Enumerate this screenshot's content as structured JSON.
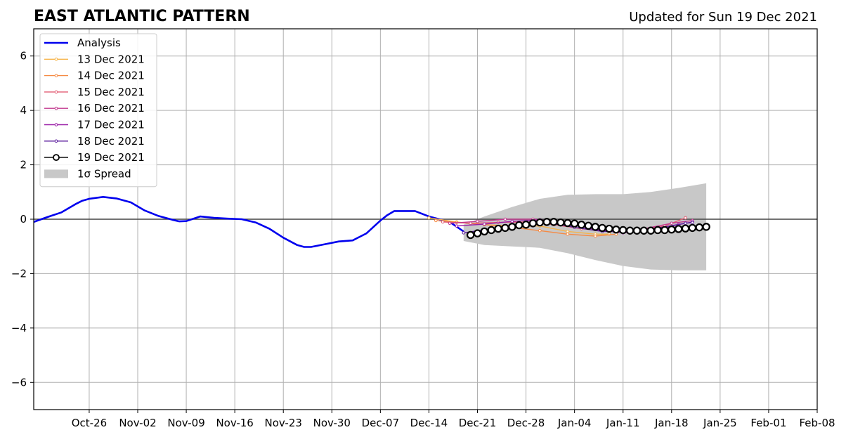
{
  "chart_data": {
    "type": "line",
    "title": "EAST ATLANTIC PATTERN",
    "subtitle": "Updated for Sun 19 Dec 2021",
    "xlabel": "",
    "ylabel": "",
    "x_range": [
      "2021-10-18",
      "2022-02-08"
    ],
    "ylim": [
      -7,
      7
    ],
    "y_ticks": [
      -6,
      -4,
      -2,
      0,
      2,
      4,
      6
    ],
    "x_ticks": [
      "Oct-26",
      "Nov-02",
      "Nov-09",
      "Nov-16",
      "Nov-23",
      "Nov-30",
      "Dec-07",
      "Dec-14",
      "Dec-21",
      "Dec-28",
      "Jan-04",
      "Jan-11",
      "Jan-18",
      "Jan-25",
      "Feb-01",
      "Feb-08"
    ],
    "grid": true,
    "legend_position": "top-left",
    "colors": {
      "analysis": "#0000ee",
      "spread": "#c8c8c8",
      "zero_line": "#444444"
    },
    "analysis": {
      "name": "Analysis",
      "x": [
        "2021-10-18",
        "2021-10-20",
        "2021-10-22",
        "2021-10-24",
        "2021-10-25",
        "2021-10-26",
        "2021-10-28",
        "2021-10-30",
        "2021-11-01",
        "2021-11-03",
        "2021-11-05",
        "2021-11-07",
        "2021-11-08",
        "2021-11-09",
        "2021-11-11",
        "2021-11-13",
        "2021-11-15",
        "2021-11-17",
        "2021-11-19",
        "2021-11-21",
        "2021-11-23",
        "2021-11-25",
        "2021-11-26",
        "2021-11-27",
        "2021-11-29",
        "2021-12-01",
        "2021-12-03",
        "2021-12-05",
        "2021-12-07",
        "2021-12-08",
        "2021-12-09",
        "2021-12-12",
        "2021-12-14",
        "2021-12-17",
        "2021-12-19"
      ],
      "y": [
        -0.1,
        0.08,
        0.25,
        0.55,
        0.68,
        0.75,
        0.82,
        0.76,
        0.62,
        0.32,
        0.12,
        -0.02,
        -0.08,
        -0.07,
        0.1,
        0.05,
        0.02,
        0.0,
        -0.12,
        -0.35,
        -0.68,
        -0.95,
        -1.02,
        -1.02,
        -0.92,
        -0.82,
        -0.78,
        -0.52,
        -0.05,
        0.15,
        0.3,
        0.3,
        0.1,
        -0.1,
        -0.45
      ]
    },
    "spread": {
      "name": "1σ Spread",
      "x": [
        "2021-12-19",
        "2021-12-22",
        "2021-12-26",
        "2021-12-30",
        "2022-01-03",
        "2022-01-07",
        "2022-01-11",
        "2022-01-15",
        "2022-01-19",
        "2022-01-23"
      ],
      "upper": [
        -0.2,
        0.1,
        0.45,
        0.75,
        0.9,
        0.92,
        0.92,
        1.0,
        1.15,
        1.32
      ],
      "lower": [
        -0.8,
        -0.95,
        -1.0,
        -1.05,
        -1.25,
        -1.5,
        -1.72,
        -1.85,
        -1.88,
        -1.88
      ]
    },
    "series": [
      {
        "name": "13 Dec 2021",
        "color": "#f6b44a",
        "marker": "dot",
        "x": [
          "2021-12-14",
          "2021-12-18",
          "2021-12-22",
          "2021-12-26",
          "2021-12-30",
          "2022-01-03",
          "2022-01-07",
          "2022-01-09"
        ],
        "y": [
          0.05,
          -0.1,
          -0.2,
          -0.25,
          -0.25,
          -0.45,
          -0.55,
          -0.55
        ]
      },
      {
        "name": "14 Dec 2021",
        "color": "#f58a44",
        "marker": "dot",
        "x": [
          "2021-12-15",
          "2021-12-18",
          "2021-12-22",
          "2021-12-26",
          "2021-12-30",
          "2022-01-03",
          "2022-01-07",
          "2022-01-10"
        ],
        "y": [
          -0.05,
          -0.12,
          -0.2,
          -0.3,
          -0.42,
          -0.55,
          -0.62,
          -0.55
        ]
      },
      {
        "name": "15 Dec 2021",
        "color": "#e25d73",
        "marker": "dot",
        "x": [
          "2021-12-16",
          "2021-12-20",
          "2021-12-24",
          "2021-12-28",
          "2022-01-01",
          "2022-01-05",
          "2022-01-09",
          "2022-01-13",
          "2022-01-17",
          "2022-01-20"
        ],
        "y": [
          -0.1,
          -0.15,
          -0.12,
          -0.1,
          -0.2,
          -0.35,
          -0.45,
          -0.4,
          -0.25,
          0.05
        ]
      },
      {
        "name": "16 Dec 2021",
        "color": "#c2378e",
        "marker": "dot",
        "x": [
          "2021-12-17",
          "2021-12-21",
          "2021-12-25",
          "2021-12-29",
          "2022-01-02",
          "2022-01-06",
          "2022-01-10",
          "2022-01-14",
          "2022-01-18",
          "2022-01-21"
        ],
        "y": [
          -0.15,
          -0.08,
          0.0,
          0.0,
          -0.1,
          -0.3,
          -0.45,
          -0.35,
          -0.15,
          -0.05
        ]
      },
      {
        "name": "17 Dec 2021",
        "color": "#9a1fa7",
        "marker": "dot",
        "x": [
          "2021-12-18",
          "2021-12-22",
          "2021-12-26",
          "2021-12-30",
          "2022-01-03",
          "2022-01-07",
          "2022-01-11",
          "2022-01-15",
          "2022-01-19",
          "2022-01-21"
        ],
        "y": [
          -0.25,
          -0.18,
          -0.08,
          -0.02,
          -0.15,
          -0.38,
          -0.5,
          -0.42,
          -0.2,
          -0.1
        ]
      },
      {
        "name": "18 Dec 2021",
        "color": "#5a1b9c",
        "marker": "dot",
        "x": [
          "2021-12-19",
          "2021-12-23",
          "2021-12-27",
          "2021-12-31",
          "2022-01-04",
          "2022-01-08",
          "2022-01-12",
          "2022-01-16",
          "2022-01-20",
          "2022-01-21"
        ],
        "y": [
          -0.5,
          -0.35,
          -0.2,
          -0.12,
          -0.3,
          -0.45,
          -0.45,
          -0.32,
          -0.15,
          -0.12
        ]
      },
      {
        "name": "19 Dec 2021",
        "color": "#000000",
        "marker": "open-circle",
        "x": [
          "2021-12-20",
          "2021-12-21",
          "2021-12-22",
          "2021-12-23",
          "2021-12-24",
          "2021-12-25",
          "2021-12-26",
          "2021-12-27",
          "2021-12-28",
          "2021-12-29",
          "2021-12-30",
          "2021-12-31",
          "2022-01-01",
          "2022-01-02",
          "2022-01-03",
          "2022-01-04",
          "2022-01-05",
          "2022-01-06",
          "2022-01-07",
          "2022-01-08",
          "2022-01-09",
          "2022-01-10",
          "2022-01-11",
          "2022-01-12",
          "2022-01-13",
          "2022-01-14",
          "2022-01-15",
          "2022-01-16",
          "2022-01-17",
          "2022-01-18",
          "2022-01-19",
          "2022-01-20",
          "2022-01-21",
          "2022-01-22",
          "2022-01-23"
        ],
        "y": [
          -0.58,
          -0.52,
          -0.45,
          -0.4,
          -0.35,
          -0.32,
          -0.28,
          -0.22,
          -0.2,
          -0.15,
          -0.12,
          -0.1,
          -0.1,
          -0.12,
          -0.14,
          -0.16,
          -0.2,
          -0.24,
          -0.28,
          -0.32,
          -0.35,
          -0.38,
          -0.4,
          -0.42,
          -0.42,
          -0.42,
          -0.42,
          -0.4,
          -0.4,
          -0.38,
          -0.36,
          -0.34,
          -0.32,
          -0.3,
          -0.28
        ]
      }
    ]
  }
}
